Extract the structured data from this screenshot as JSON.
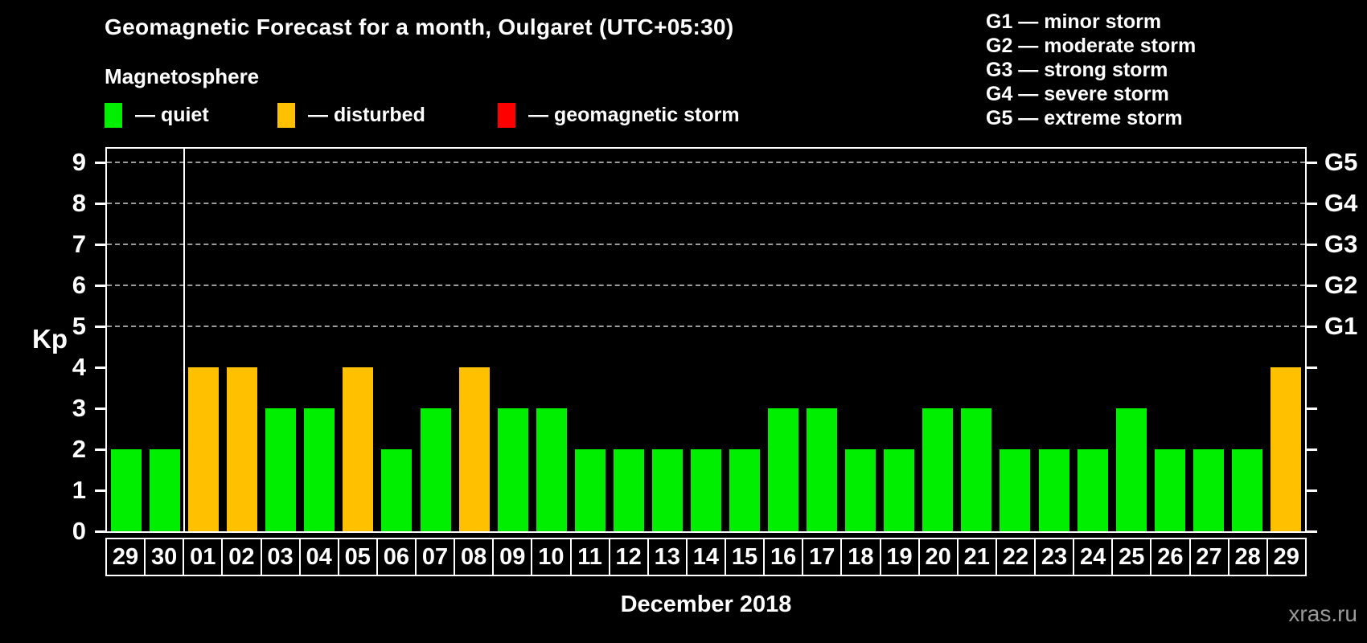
{
  "chart_data": {
    "type": "bar",
    "title": "Geomagnetic Forecast for a month, Oulgaret (UTC+05:30)",
    "subtitle": "Magnetosphere",
    "xlabel": "December 2018",
    "ylabel": "Kp",
    "ylim": [
      0,
      9
    ],
    "y_ticks": [
      0,
      1,
      2,
      3,
      4,
      5,
      6,
      7,
      8,
      9
    ],
    "gridlines_at": [
      5,
      6,
      7,
      8,
      9
    ],
    "grid": "horizontal dashed at Kp 5-9",
    "legend_position": "top-left",
    "right_axis": [
      {
        "level": 5,
        "label": "G1"
      },
      {
        "level": 6,
        "label": "G2"
      },
      {
        "level": 7,
        "label": "G3"
      },
      {
        "level": 8,
        "label": "G4"
      },
      {
        "level": 9,
        "label": "G5"
      }
    ],
    "categories": [
      "29",
      "30",
      "01",
      "02",
      "03",
      "04",
      "05",
      "06",
      "07",
      "08",
      "09",
      "10",
      "11",
      "12",
      "13",
      "14",
      "15",
      "16",
      "17",
      "18",
      "19",
      "20",
      "21",
      "22",
      "23",
      "24",
      "25",
      "26",
      "27",
      "28",
      "29"
    ],
    "series": [
      {
        "name": "Kp forecast",
        "values": [
          2,
          2,
          4,
          4,
          3,
          3,
          4,
          2,
          3,
          4,
          3,
          3,
          2,
          2,
          2,
          2,
          2,
          3,
          3,
          2,
          2,
          3,
          3,
          2,
          2,
          2,
          3,
          2,
          2,
          2,
          4
        ],
        "statuses": [
          "quiet",
          "quiet",
          "disturbed",
          "disturbed",
          "quiet",
          "quiet",
          "disturbed",
          "quiet",
          "quiet",
          "disturbed",
          "quiet",
          "quiet",
          "quiet",
          "quiet",
          "quiet",
          "quiet",
          "quiet",
          "quiet",
          "quiet",
          "quiet",
          "quiet",
          "quiet",
          "quiet",
          "quiet",
          "quiet",
          "quiet",
          "quiet",
          "quiet",
          "quiet",
          "quiet",
          "disturbed"
        ]
      }
    ],
    "boundary_index": 1
  },
  "legend": {
    "items": [
      {
        "label": "— quiet",
        "status": "quiet"
      },
      {
        "label": "— disturbed",
        "status": "disturbed"
      },
      {
        "label": "— geomagnetic storm",
        "status": "storm"
      }
    ]
  },
  "storm_scale": {
    "items": [
      "G1 — minor storm",
      "G2 — moderate storm",
      "G3 — strong storm",
      "G4 — severe storm",
      "G5 — extreme storm"
    ]
  },
  "watermark": "xras.ru",
  "colors": {
    "quiet": "#00ee00",
    "disturbed": "#ffc000",
    "storm": "#ff0000",
    "background": "#000000",
    "axis": "#ffffff",
    "grid": "#9c9c9c",
    "watermark": "#999999"
  }
}
